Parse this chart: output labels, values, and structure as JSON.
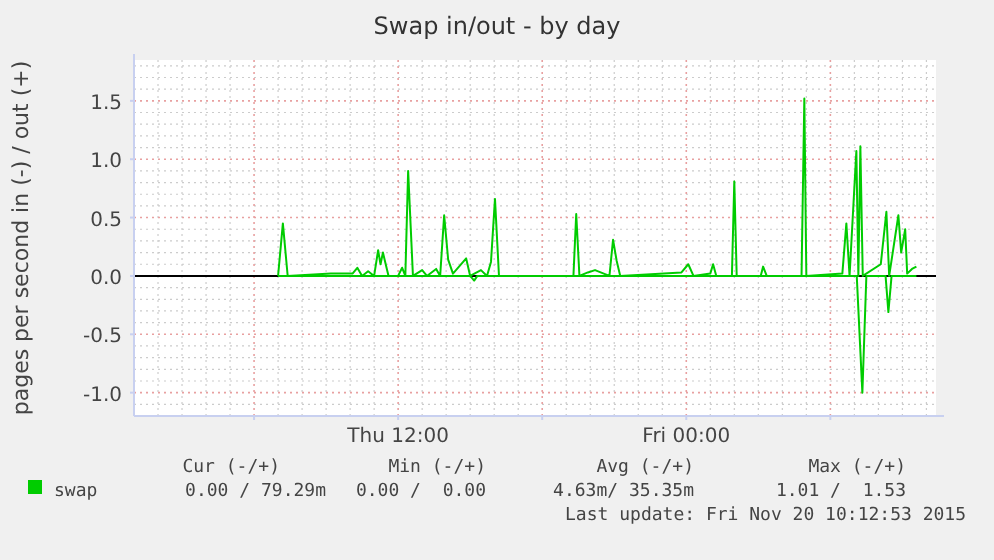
{
  "chart_data": {
    "type": "line",
    "title": "Swap in/out - by day",
    "ylabel": "pages per second in (-) / out (+)",
    "xlim": [
      "2015-11-19T01:00",
      "2015-11-20T10:24"
    ],
    "ylim": [
      -1.2,
      1.85
    ],
    "xticks": [
      {
        "value": "2015-11-19T06:00",
        "label": null
      },
      {
        "value": "2015-11-19T12:00",
        "label": "Thu 12:00"
      },
      {
        "value": "2015-11-19T18:00",
        "label": null
      },
      {
        "value": "2015-11-20T00:00",
        "label": "Fri 00:00"
      },
      {
        "value": "2015-11-20T06:00",
        "label": null
      }
    ],
    "yticks": [
      {
        "value": -1,
        "label": "-1.0"
      },
      -0.5,
      {
        "value": 0,
        "label": "0.0"
      },
      0.5,
      {
        "value": 1,
        "label": "1.0"
      },
      1.5
    ],
    "grid": true,
    "legend": "bottom left",
    "line_style": "solid",
    "ref_lines": [
      {
        "axis": "y",
        "value": 0,
        "color": "#000000"
      }
    ],
    "series": [
      {
        "name": "swap",
        "color": "#00cc00",
        "x": [
          "2015-11-19T07:00",
          "2015-11-19T07:12",
          "2015-11-19T07:24",
          "2015-11-19T09:12",
          "2015-11-19T09:48",
          "2015-11-19T10:06",
          "2015-11-19T10:18",
          "2015-11-19T10:30",
          "2015-11-19T10:45",
          "2015-11-19T11:00",
          "2015-11-19T11:10",
          "2015-11-19T11:16",
          "2015-11-19T11:22",
          "2015-11-19T11:36",
          "2015-11-19T12:00",
          "2015-11-19T12:10",
          "2015-11-19T12:18",
          "2015-11-19T12:25",
          "2015-11-19T12:37",
          "2015-11-19T13:00",
          "2015-11-19T13:12",
          "2015-11-19T13:35",
          "2015-11-19T13:45",
          "2015-11-19T13:55",
          "2015-11-19T14:05",
          "2015-11-19T14:17",
          "2015-11-19T14:50",
          "2015-11-19T15:00",
          "2015-11-19T15:27",
          "2015-11-19T15:42",
          "2015-11-19T15:52",
          "2015-11-19T16:02",
          "2015-11-19T16:12",
          "2015-11-19T19:18",
          "2015-11-19T19:25",
          "2015-11-19T19:33",
          "2015-11-19T19:54",
          "2015-11-19T20:12",
          "2015-11-19T20:48",
          "2015-11-19T20:57",
          "2015-11-19T21:06",
          "2015-11-19T21:15",
          "2015-11-19T23:48",
          "2015-11-20T00:05",
          "2015-11-20T00:18",
          "2015-11-20T01:00",
          "2015-11-20T01:07",
          "2015-11-20T01:15",
          "2015-11-20T01:54",
          "2015-11-20T02:00",
          "2015-11-20T02:06",
          "2015-11-20T03:06",
          "2015-11-20T03:12",
          "2015-11-20T03:21",
          "2015-11-20T04:48",
          "2015-11-20T04:55",
          "2015-11-20T05:00",
          "2015-11-20T06:30",
          "2015-11-20T06:40",
          "2015-11-20T06:48",
          "2015-11-20T07:05",
          "2015-11-20T07:10",
          "2015-11-20T07:15",
          "2015-11-20T07:21",
          "2015-11-20T08:06",
          "2015-11-20T08:20",
          "2015-11-20T08:27",
          "2015-11-20T08:50",
          "2015-11-20T08:57",
          "2015-11-20T09:07",
          "2015-11-20T09:12",
          "2015-11-20T09:24",
          "2015-11-20T09:35"
        ],
        "values": [
          0,
          0.45,
          0,
          0.02,
          0.02,
          0.02,
          0.07,
          0,
          0.04,
          0,
          0.22,
          0.1,
          0.2,
          0,
          0,
          0.07,
          0,
          0.9,
          0,
          0.05,
          0,
          0.06,
          0,
          0.52,
          0.14,
          0.02,
          0.15,
          0,
          0.05,
          0,
          0.12,
          0.66,
          0,
          0,
          0.53,
          0,
          0.03,
          0.05,
          0,
          0.31,
          0.13,
          0,
          0.03,
          0.1,
          0,
          0.02,
          0.1,
          0,
          0,
          0.81,
          0,
          0,
          0.08,
          0,
          0,
          1.52,
          0,
          0.02,
          0.45,
          0,
          1.07,
          0,
          1.11,
          0,
          0.1,
          0.55,
          0,
          0.52,
          0.2,
          0.4,
          0.02,
          0.06,
          0.08
        ]
      },
      {
        "color": "#00cc00",
        "x": [
          "2015-11-19T07:00",
          "2015-11-19T15:00",
          "2015-11-19T15:10",
          "2015-11-19T15:18",
          "2015-11-20T07:06",
          "2015-11-20T07:20",
          "2015-11-20T07:30",
          "2015-11-20T08:18",
          "2015-11-20T08:25",
          "2015-11-20T08:33",
          "2015-11-20T09:35"
        ],
        "values": [
          0,
          0,
          -0.04,
          0,
          0,
          -1.0,
          0,
          0,
          -0.31,
          0,
          0
        ]
      }
    ],
    "annotations": [
      "Cur (-/+)",
      "Min (-/+)",
      "Avg (-/+)",
      "Max (-/+)",
      "0.00 / 79.29m",
      "0.00 /  0.00",
      "4.63m/ 35.35m",
      "1.01 /  1.53",
      "Last update: Fri Nov 20 10:12:53 2015"
    ]
  }
}
